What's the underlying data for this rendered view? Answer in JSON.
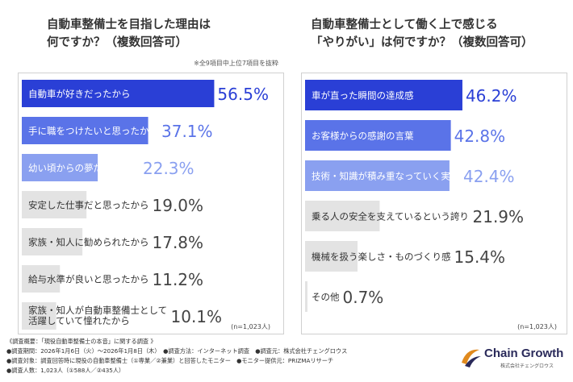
{
  "left": {
    "title_lines": [
      "自動車整備士を目指した理由は",
      "何ですか？（複数回答可）"
    ],
    "note": "※全9項目中上位7項目を抜粋",
    "n_note": "(n=1,023人)"
  },
  "right": {
    "title_lines": [
      "自動車整備士として働く上で感じる",
      "「やりがい」は何ですか？（複数回答可）"
    ],
    "n_note": "(n=1,023人)"
  },
  "chart_data": [
    {
      "type": "bar",
      "orientation": "horizontal",
      "title": "自動車整備士を目指した理由は何ですか？（複数回答可）",
      "categories": [
        [
          "自動車が好きだったから"
        ],
        [
          "手に職をつけたいと思ったから"
        ],
        [
          "幼い頃からの夢だったから"
        ],
        [
          "安定した仕事だと思ったから"
        ],
        [
          "家族・知人に勧められたから"
        ],
        [
          "給与水準が良いと思ったから"
        ],
        [
          "家族・知人が自動車整備士として",
          "活躍していて憧れたから"
        ]
      ],
      "values": [
        56.5,
        37.1,
        22.3,
        19.0,
        17.8,
        11.2,
        10.1
      ],
      "value_labels": [
        "56.5%",
        "37.1%",
        "22.3%",
        "19.0%",
        "17.8%",
        "11.2%",
        "10.1%"
      ],
      "colors": [
        "#2a3fd6",
        "#5a73e8",
        "#8aa0f0",
        "#e3e3e3",
        "#e3e3e3",
        "#e3e3e3",
        "#e3e3e3"
      ],
      "label_colors": [
        "#ffffff",
        "#ffffff",
        "#ffffff",
        "#333333",
        "#333333",
        "#333333",
        "#333333"
      ],
      "value_colors": [
        "#2a3fd6",
        "#5a73e8",
        "#8aa0f0",
        "#444444",
        "#444444",
        "#444444",
        "#444444"
      ],
      "xlim": [
        0,
        100
      ]
    },
    {
      "type": "bar",
      "orientation": "horizontal",
      "title": "自動車整備士として働く上で感じる「やりがい」は何ですか？（複数回答可）",
      "categories": [
        [
          "車が直った瞬間の達成感"
        ],
        [
          "お客様からの感謝の言葉"
        ],
        [
          "技術・知識が積み重なっていく実感"
        ],
        [
          "乗る人の安全を支えているという誇り"
        ],
        [
          "機械を扱う楽しさ・ものづくり感"
        ],
        [
          "その他"
        ]
      ],
      "values": [
        46.2,
        42.8,
        42.4,
        21.9,
        15.4,
        0.7
      ],
      "value_labels": [
        "46.2%",
        "42.8%",
        "42.4%",
        "21.9%",
        "15.4%",
        "0.7%"
      ],
      "colors": [
        "#2a3fd6",
        "#5a73e8",
        "#8aa0f0",
        "#e3e3e3",
        "#e3e3e3",
        "#e3e3e3"
      ],
      "label_colors": [
        "#ffffff",
        "#ffffff",
        "#ffffff",
        "#333333",
        "#333333",
        "#333333"
      ],
      "value_colors": [
        "#2a3fd6",
        "#5a73e8",
        "#8aa0f0",
        "#444444",
        "#444444",
        "#444444"
      ],
      "xlim": [
        0,
        100
      ]
    }
  ],
  "footer": {
    "lines": [
      "《調査概要：「現役自動車整備士の本音」に関する調査 》",
      "●調査期間：2026年1月6日（火）～2026年1月8日（木）　●調査方法：インターネット調査　●調査元：株式会社チェングロウス",
      "●調査対象：調査回答時に現役の自動車整備士（①専業／②兼業）と回答したモニター　●モニター提供元：PRIZMAリサーチ",
      "●調査人数：1,023人（①588人／②435人）"
    ]
  },
  "brand": {
    "name": "Chain Growth",
    "sub": "株式会社チェングロウス",
    "logo_icon": "swoosh-logo-icon"
  }
}
